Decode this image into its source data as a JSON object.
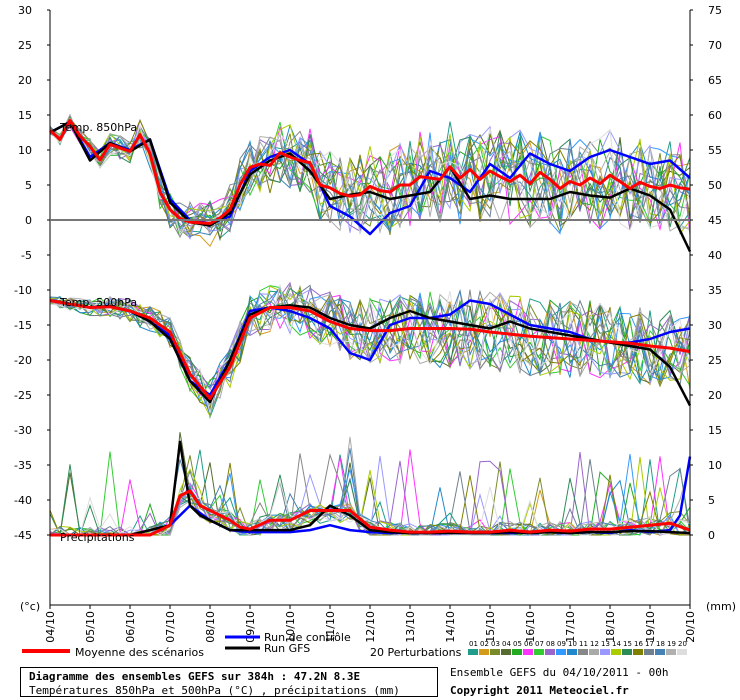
{
  "chart_data": {
    "type": "line",
    "title": "Diagramme des ensembles GEFS sur 384h : 47.2N 8.3E",
    "subtitle": "Températures 850hPa et 500hPa (°C) , précipitations (mm)",
    "left_axis_unit": "(°c)",
    "right_axis_unit": "(mm)",
    "left_ticks": [
      30,
      25,
      20,
      15,
      10,
      5,
      0,
      -5,
      -10,
      -15,
      -20,
      -25,
      -30,
      -35,
      -40,
      -45
    ],
    "right_ticks": [
      75,
      70,
      65,
      60,
      55,
      50,
      45,
      40,
      35,
      30,
      25,
      20,
      15,
      10,
      5,
      0
    ],
    "ylim": [
      -55,
      30
    ],
    "x_dates": [
      "04/10",
      "05/10",
      "06/10",
      "07/10",
      "08/10",
      "09/10",
      "10/10",
      "11/10",
      "12/10",
      "13/10",
      "14/10",
      "15/10",
      "16/10",
      "17/10",
      "18/10",
      "19/10",
      "20/10"
    ],
    "panel_labels": {
      "t850": "Temp. 850hPa",
      "t500": "Temp. 500hPa",
      "precip": "Précipitations"
    },
    "perturbation_labels": [
      "01",
      "02",
      "03",
      "04",
      "05",
      "06",
      "07",
      "08",
      "09",
      "10",
      "11",
      "12",
      "13",
      "14",
      "15",
      "16",
      "17",
      "18",
      "19",
      "20"
    ],
    "perturbation_colors": [
      "#1f9d8a",
      "#d49b1b",
      "#7a8c2a",
      "#556b2f",
      "#22aa22",
      "#ff33ff",
      "#33cc33",
      "#9966cc",
      "#3399ff",
      "#2288cc",
      "#888888",
      "#aaaaaa",
      "#9999ff",
      "#aacc00",
      "#2e8b57",
      "#808000",
      "#708090",
      "#4682b4",
      "#b0b0b0",
      "#dddddd"
    ],
    "legend": {
      "control": "Run de contrôle",
      "gfs": "Run GFS",
      "mean": "Moyenne des scénarios",
      "perturbations": "20 Perturbations"
    },
    "series": [
      {
        "name": "Moyenne des scénarios",
        "color": "#ff0000",
        "panel": "t850",
        "x": [
          0,
          0.25,
          0.5,
          0.75,
          1,
          1.25,
          1.5,
          1.75,
          2,
          2.25,
          2.5,
          2.75,
          3,
          3.25,
          3.5,
          3.75,
          4,
          4.25,
          4.5,
          4.75,
          5,
          5.25,
          5.5,
          5.75,
          6,
          6.25,
          6.5,
          6.75,
          7,
          7.25,
          7.5,
          7.75,
          8,
          8.25,
          8.5,
          8.75,
          9,
          9.25,
          9.5,
          9.75,
          10,
          10.25,
          10.5,
          10.75,
          11,
          11.25,
          11.5,
          11.75,
          12,
          12.25,
          12.5,
          12.75,
          13,
          13.25,
          13.5,
          13.75,
          14,
          14.25,
          14.5,
          14.75,
          15,
          15.25,
          15.5,
          15.75,
          16
        ],
        "values": [
          12.8,
          11.5,
          14.2,
          12,
          10.5,
          8.6,
          10.8,
          10.3,
          9.8,
          12.2,
          9.5,
          4,
          1.5,
          0.2,
          -0.3,
          -0.4,
          -0.5,
          0.3,
          1.5,
          5,
          7.5,
          8,
          7.8,
          9.6,
          9,
          8.5,
          8.2,
          5,
          4.6,
          3.8,
          3.4,
          3.6,
          4.8,
          4.2,
          4,
          5,
          5,
          6.2,
          6,
          5.8,
          7.6,
          6,
          7.2,
          5.8,
          7,
          6.2,
          5.5,
          6.4,
          5.2,
          6.8,
          5.8,
          4.5,
          5.5,
          5,
          6,
          5.2,
          6.4,
          5.5,
          4.5,
          5.4,
          4.8,
          4.5,
          5,
          4.6,
          4.4
        ]
      },
      {
        "name": "Run GFS",
        "color": "#000000",
        "panel": "t850",
        "x": [
          0,
          0.5,
          1,
          1.5,
          2,
          2.5,
          3,
          3.5,
          4,
          4.5,
          5,
          5.5,
          6,
          6.5,
          7,
          7.5,
          8,
          8.5,
          9,
          9.5,
          10,
          10.5,
          11,
          11.5,
          12,
          12.5,
          13,
          13.5,
          14,
          14.5,
          15,
          15.5,
          16
        ],
        "values": [
          12.5,
          14,
          8.5,
          11,
          9.8,
          11.5,
          2.5,
          -0.3,
          -0.8,
          1,
          6.5,
          8.5,
          9.5,
          7,
          3,
          3.6,
          4,
          3,
          3.5,
          4,
          7.6,
          3,
          3.5,
          3,
          3,
          3,
          4,
          3.5,
          3.2,
          4.5,
          3.5,
          1.5,
          -4.5
        ]
      },
      {
        "name": "Run de contrôle",
        "color": "#0000ff",
        "panel": "t850",
        "x": [
          0,
          0.5,
          1,
          1.5,
          2,
          2.5,
          3,
          3.5,
          4,
          4.5,
          5,
          5.5,
          6,
          6.5,
          7,
          7.5,
          8,
          8.5,
          9,
          9.5,
          10,
          10.5,
          11,
          11.5,
          12,
          12.5,
          13,
          13.5,
          14,
          14.5,
          15,
          15.5,
          16
        ],
        "values": [
          12.5,
          14,
          9,
          11,
          10,
          11.5,
          3,
          0,
          -0.5,
          0.5,
          7,
          9,
          10,
          8,
          2,
          0.5,
          -2,
          1,
          2,
          7,
          6,
          4,
          8,
          6,
          9.5,
          8,
          7,
          9,
          10,
          9,
          8,
          8.5,
          6
        ]
      },
      {
        "name": "Moyenne des scénarios",
        "color": "#ff0000",
        "panel": "t500",
        "x": [
          0,
          0.5,
          1,
          1.5,
          2,
          2.5,
          3,
          3.5,
          4,
          4.5,
          5,
          5.5,
          6,
          6.5,
          7,
          7.5,
          8,
          8.5,
          9,
          9.5,
          10,
          10.5,
          11,
          11.5,
          12,
          12.5,
          13,
          13.5,
          14,
          14.5,
          15,
          15.5,
          16
        ],
        "values": [
          -11.5,
          -12,
          -12.5,
          -12.4,
          -13,
          -14,
          -16,
          -22,
          -25.5,
          -21,
          -14,
          -12.5,
          -12.5,
          -13,
          -14.5,
          -15.5,
          -15.8,
          -15.8,
          -15.5,
          -15.5,
          -15.5,
          -15.6,
          -16,
          -16.3,
          -16.6,
          -16.8,
          -17,
          -17.2,
          -17.4,
          -17.6,
          -18,
          -18.3,
          -18.8
        ]
      },
      {
        "name": "Run GFS",
        "color": "#000000",
        "panel": "t500",
        "x": [
          0,
          0.5,
          1,
          1.5,
          2,
          2.5,
          3,
          3.5,
          4,
          4.5,
          5,
          5.5,
          6,
          6.5,
          7,
          7.5,
          8,
          8.5,
          9,
          9.5,
          10,
          10.5,
          11,
          11.5,
          12,
          12.5,
          13,
          13.5,
          14,
          14.5,
          15,
          15.5,
          16
        ],
        "values": [
          -11.5,
          -12,
          -12.5,
          -12.3,
          -13,
          -14.5,
          -17,
          -23,
          -26,
          -20,
          -13.5,
          -12.5,
          -12.2,
          -12.5,
          -14,
          -15,
          -15.5,
          -14,
          -13,
          -14,
          -14.5,
          -15,
          -15.5,
          -14.5,
          -15.5,
          -16,
          -16.5,
          -17,
          -17.5,
          -18,
          -18.5,
          -21,
          -26.5
        ]
      },
      {
        "name": "Run de contrôle",
        "color": "#0000ff",
        "panel": "t500",
        "x": [
          0,
          0.5,
          1,
          1.5,
          2,
          2.5,
          3,
          3.5,
          4,
          4.5,
          5,
          5.5,
          6,
          6.5,
          7,
          7.5,
          8,
          8.5,
          9,
          9.5,
          10,
          10.5,
          11,
          11.5,
          12,
          12.5,
          13,
          13.5,
          14,
          14.5,
          15,
          15.5,
          16
        ],
        "values": [
          -11.5,
          -12,
          -12.5,
          -12.3,
          -13,
          -14.5,
          -16.5,
          -23,
          -25,
          -20,
          -13,
          -12.5,
          -13,
          -14,
          -15.5,
          -19,
          -20,
          -15,
          -14,
          -14,
          -13.5,
          -11.5,
          -12,
          -13.5,
          -15,
          -15.5,
          -16,
          -17,
          -17.5,
          -17.5,
          -17,
          -16,
          -15.5
        ]
      },
      {
        "name": "Moyenne des scénarios",
        "color": "#ff0000",
        "panel": "precip",
        "x": [
          0,
          0.5,
          1,
          1.5,
          2,
          2.5,
          3,
          3.25,
          3.5,
          3.75,
          4,
          4.25,
          4.5,
          4.75,
          5,
          5.5,
          6,
          6.5,
          7,
          7.5,
          8,
          8.5,
          9,
          9.5,
          10,
          10.5,
          11,
          11.5,
          12,
          12.5,
          13,
          13.5,
          14,
          14.5,
          15,
          15.5,
          16
        ],
        "values": [
          0,
          0,
          0,
          0,
          0,
          0,
          1,
          4,
          4.5,
          3,
          2.5,
          2,
          1.5,
          0.8,
          0.6,
          1.5,
          1.5,
          2.5,
          2.5,
          2.5,
          0.8,
          0.5,
          0.3,
          0.3,
          0.4,
          0.3,
          0.3,
          0.5,
          0.3,
          0.5,
          0.4,
          0.6,
          0.6,
          0.8,
          1,
          1.2,
          0.5
        ]
      },
      {
        "name": "Run GFS",
        "color": "#000000",
        "panel": "precip",
        "x": [
          0,
          0.5,
          1,
          1.5,
          2,
          2.5,
          3,
          3.25,
          3.5,
          3.75,
          4,
          4.5,
          5,
          5.5,
          6,
          6.5,
          7,
          7.5,
          8,
          8.5,
          9,
          9.5,
          10,
          10.5,
          11,
          11.5,
          12,
          12.5,
          13,
          13.5,
          14,
          14.5,
          15,
          15.5,
          16
        ],
        "values": [
          0,
          0,
          0,
          0,
          0,
          0.5,
          1,
          9.5,
          3,
          2,
          1.5,
          0.5,
          0.5,
          0.5,
          0.5,
          1,
          3,
          2,
          0.5,
          0.3,
          0.2,
          0.2,
          0.2,
          0.2,
          0.2,
          0.3,
          0.2,
          0.3,
          0.2,
          0.3,
          0.3,
          0.4,
          0.4,
          0.3,
          0.2
        ]
      },
      {
        "name": "Run de contrôle",
        "color": "#0000ff",
        "panel": "precip",
        "x": [
          0,
          0.5,
          1,
          1.5,
          2,
          2.5,
          3,
          3.5,
          4,
          4.5,
          5,
          5.5,
          6,
          6.5,
          7,
          7.5,
          8,
          8.5,
          9,
          9.5,
          10,
          10.5,
          11,
          11.5,
          12,
          12.5,
          13,
          13.5,
          14,
          14.5,
          15,
          15.5,
          15.75,
          16
        ],
        "values": [
          0,
          0,
          0,
          0,
          0,
          0,
          1,
          3,
          1.5,
          0.5,
          0.3,
          0.3,
          0.3,
          0.5,
          1,
          0.5,
          0.3,
          0.2,
          0.2,
          0.2,
          0.2,
          0.2,
          0.2,
          0.2,
          0.3,
          0.3,
          0.2,
          0.3,
          0.2,
          0.5,
          0.3,
          0.5,
          2,
          8
        ]
      }
    ],
    "grid": false
  },
  "footer": {
    "ensemble_line": "Ensemble GEFS du 04/10/2011 - 00h",
    "copyright": "Copyright 2011 Meteociel.fr"
  }
}
